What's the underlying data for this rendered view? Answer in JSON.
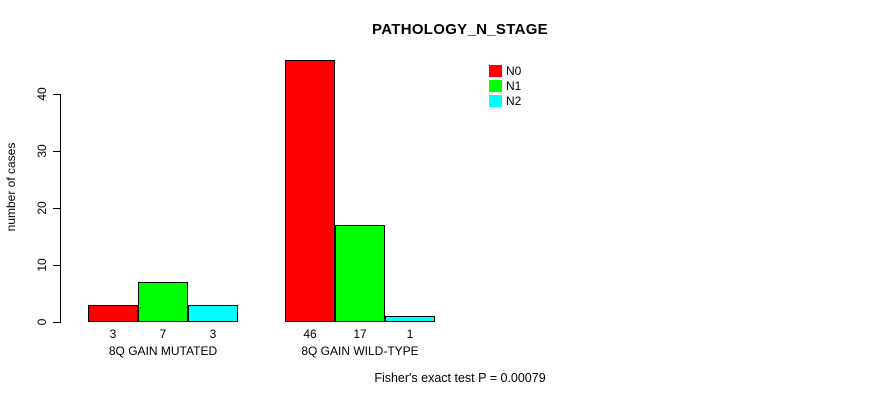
{
  "chart_data": {
    "type": "bar",
    "title": "PATHOLOGY_N_STAGE",
    "ylabel": "number of cases",
    "xlabel": "",
    "ylim": [
      0,
      46
    ],
    "yticks": [
      0,
      10,
      20,
      30,
      40
    ],
    "grid": false,
    "legend_position": "top-right",
    "categories": [
      "8Q GAIN MUTATED",
      "8Q GAIN WILD-TYPE"
    ],
    "series": [
      {
        "name": "N0",
        "color": "#ff0000",
        "values": [
          3,
          46
        ]
      },
      {
        "name": "N1",
        "color": "#00ff00",
        "values": [
          7,
          17
        ]
      },
      {
        "name": "N2",
        "color": "#00ffff",
        "values": [
          3,
          1
        ]
      }
    ],
    "bar_value_labels": [
      [
        3,
        7,
        3
      ],
      [
        46,
        17,
        1
      ]
    ],
    "annotation": "Fisher's exact test P = 0.00079"
  }
}
